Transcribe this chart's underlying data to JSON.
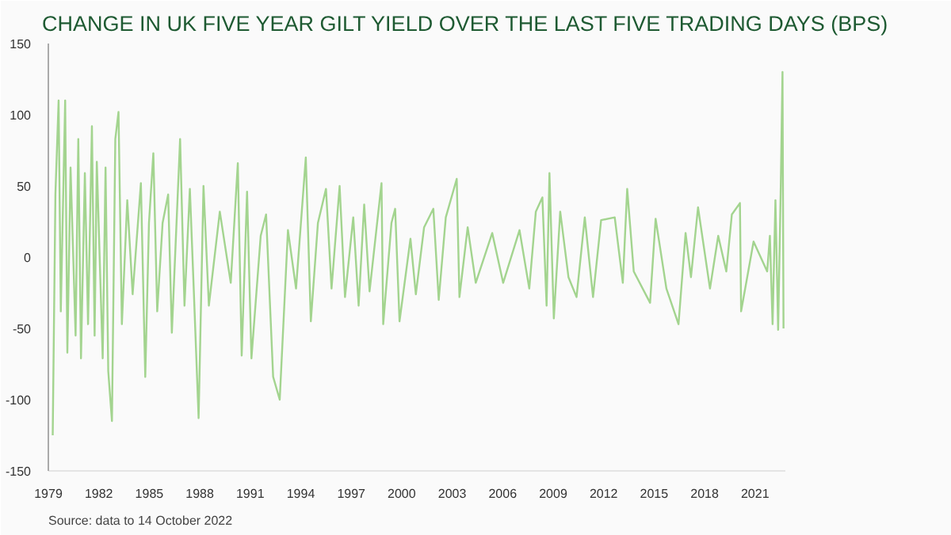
{
  "chart_data": {
    "type": "line",
    "title": "CHANGE IN UK FIVE YEAR GILT YIELD OVER THE LAST FIVE TRADING DAYS (BPS)",
    "annotations": [
      "Source: data to 14 October 2022"
    ],
    "x": [
      1979.26,
      1979.42,
      1979.61,
      1979.74,
      1980.0,
      1980.13,
      1980.32,
      1980.62,
      1980.78,
      1980.94,
      1981.17,
      1981.36,
      1981.59,
      1981.75,
      1981.88,
      1982.23,
      1982.4,
      1982.56,
      1982.78,
      1982.98,
      1983.17,
      1983.37,
      1983.69,
      1984.01,
      1984.5,
      1984.76,
      1984.98,
      1985.24,
      1985.47,
      1985.79,
      1986.12,
      1986.34,
      1986.83,
      1987.09,
      1987.41,
      1987.64,
      1987.93,
      1988.22,
      1988.54,
      1989.19,
      1989.84,
      1990.26,
      1990.49,
      1990.81,
      1991.07,
      1991.62,
      1991.94,
      1992.36,
      1992.75,
      1993.24,
      1993.72,
      1994.3,
      1994.6,
      1995.02,
      1995.5,
      1995.83,
      1996.31,
      1996.63,
      1997.12,
      1997.44,
      1997.77,
      1998.09,
      1998.8,
      1998.9,
      1999.39,
      1999.61,
      1999.87,
      2000.52,
      2000.84,
      2001.33,
      2001.88,
      2002.2,
      2002.62,
      2003.27,
      2003.43,
      2003.92,
      2004.4,
      2005.38,
      2006.03,
      2007.0,
      2007.58,
      2007.97,
      2008.36,
      2008.61,
      2008.78,
      2009.04,
      2009.42,
      2009.91,
      2010.39,
      2010.88,
      2011.37,
      2011.85,
      2012.66,
      2013.14,
      2013.4,
      2013.79,
      2014.76,
      2015.09,
      2015.73,
      2016.45,
      2016.87,
      2017.19,
      2017.61,
      2018.32,
      2018.81,
      2019.29,
      2019.62,
      2020.1,
      2020.17,
      2020.91,
      2021.72,
      2021.88,
      2022.04,
      2022.21,
      2022.37,
      2022.53,
      2022.63,
      2022.69
    ],
    "series": [
      {
        "color": "#a3d48f",
        "values": [
          -125,
          44,
          110,
          -38,
          110,
          -67,
          63,
          -55,
          83,
          -71,
          59,
          -47,
          92,
          -55,
          67,
          -71,
          63,
          -80,
          -115,
          83,
          102,
          -47,
          40,
          -26,
          52,
          -84,
          24,
          73,
          -38,
          24,
          44,
          -53,
          83,
          -34,
          48,
          -22,
          -113,
          50,
          -34,
          32,
          -18,
          66,
          -69,
          46,
          -71,
          15,
          30,
          -84,
          -100,
          19,
          -22,
          70,
          -45,
          24,
          48,
          -22,
          50,
          -28,
          28,
          -34,
          37,
          -24,
          52,
          -47,
          24,
          34,
          -45,
          13,
          -26,
          21,
          34,
          -30,
          28,
          55,
          -28,
          21,
          -18,
          17,
          -18,
          19,
          -22,
          32,
          42,
          -34,
          59,
          -43,
          32,
          -14,
          -28,
          28,
          -28,
          26,
          28,
          -18,
          48,
          -10,
          -32,
          27,
          -22,
          -47,
          17,
          -14,
          35,
          -22,
          15,
          -10,
          30,
          38,
          -38,
          11,
          -10,
          15,
          -47,
          40,
          -51,
          52,
          130,
          -50
        ]
      }
    ],
    "xlim": [
      1979,
      2022.8
    ],
    "ylim": [
      -150,
      150
    ],
    "xticks": [
      1979,
      1982,
      1985,
      1988,
      1991,
      1994,
      1997,
      2000,
      2003,
      2006,
      2009,
      2012,
      2015,
      2018,
      2021
    ],
    "yticks": [
      -150,
      -100,
      -50,
      0,
      50,
      100,
      150
    ],
    "grid": false,
    "line_style": "solid",
    "marker": "none"
  }
}
